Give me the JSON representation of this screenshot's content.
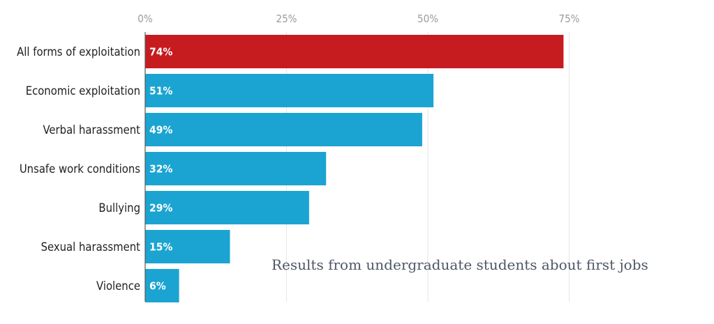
{
  "chart_data": {
    "type": "bar",
    "orientation": "horizontal",
    "categories": [
      "All forms of exploitation",
      "Economic exploitation",
      "Verbal harassment",
      "Unsafe work conditions",
      "Bullying",
      "Sexual harassment",
      "Violence"
    ],
    "values": [
      74,
      51,
      49,
      32,
      29,
      15,
      6
    ],
    "data_labels": [
      "74%",
      "51%",
      "49%",
      "32%",
      "29%",
      "15%",
      "6%"
    ],
    "xlim": [
      0,
      75
    ],
    "ticks": [
      0,
      25,
      50,
      75
    ],
    "tick_labels": [
      "0%",
      "25%",
      "50%",
      "75%"
    ],
    "axis_position": "top",
    "grid": true,
    "colors": {
      "highlight": "#c61b1f",
      "default": "#1ba4d1",
      "grid": "#e6e6e6",
      "axis": "#555555"
    },
    "highlight_categories": [
      "All forms of exploitation"
    ],
    "annotation": "Results from undergraduate students about first jobs"
  }
}
